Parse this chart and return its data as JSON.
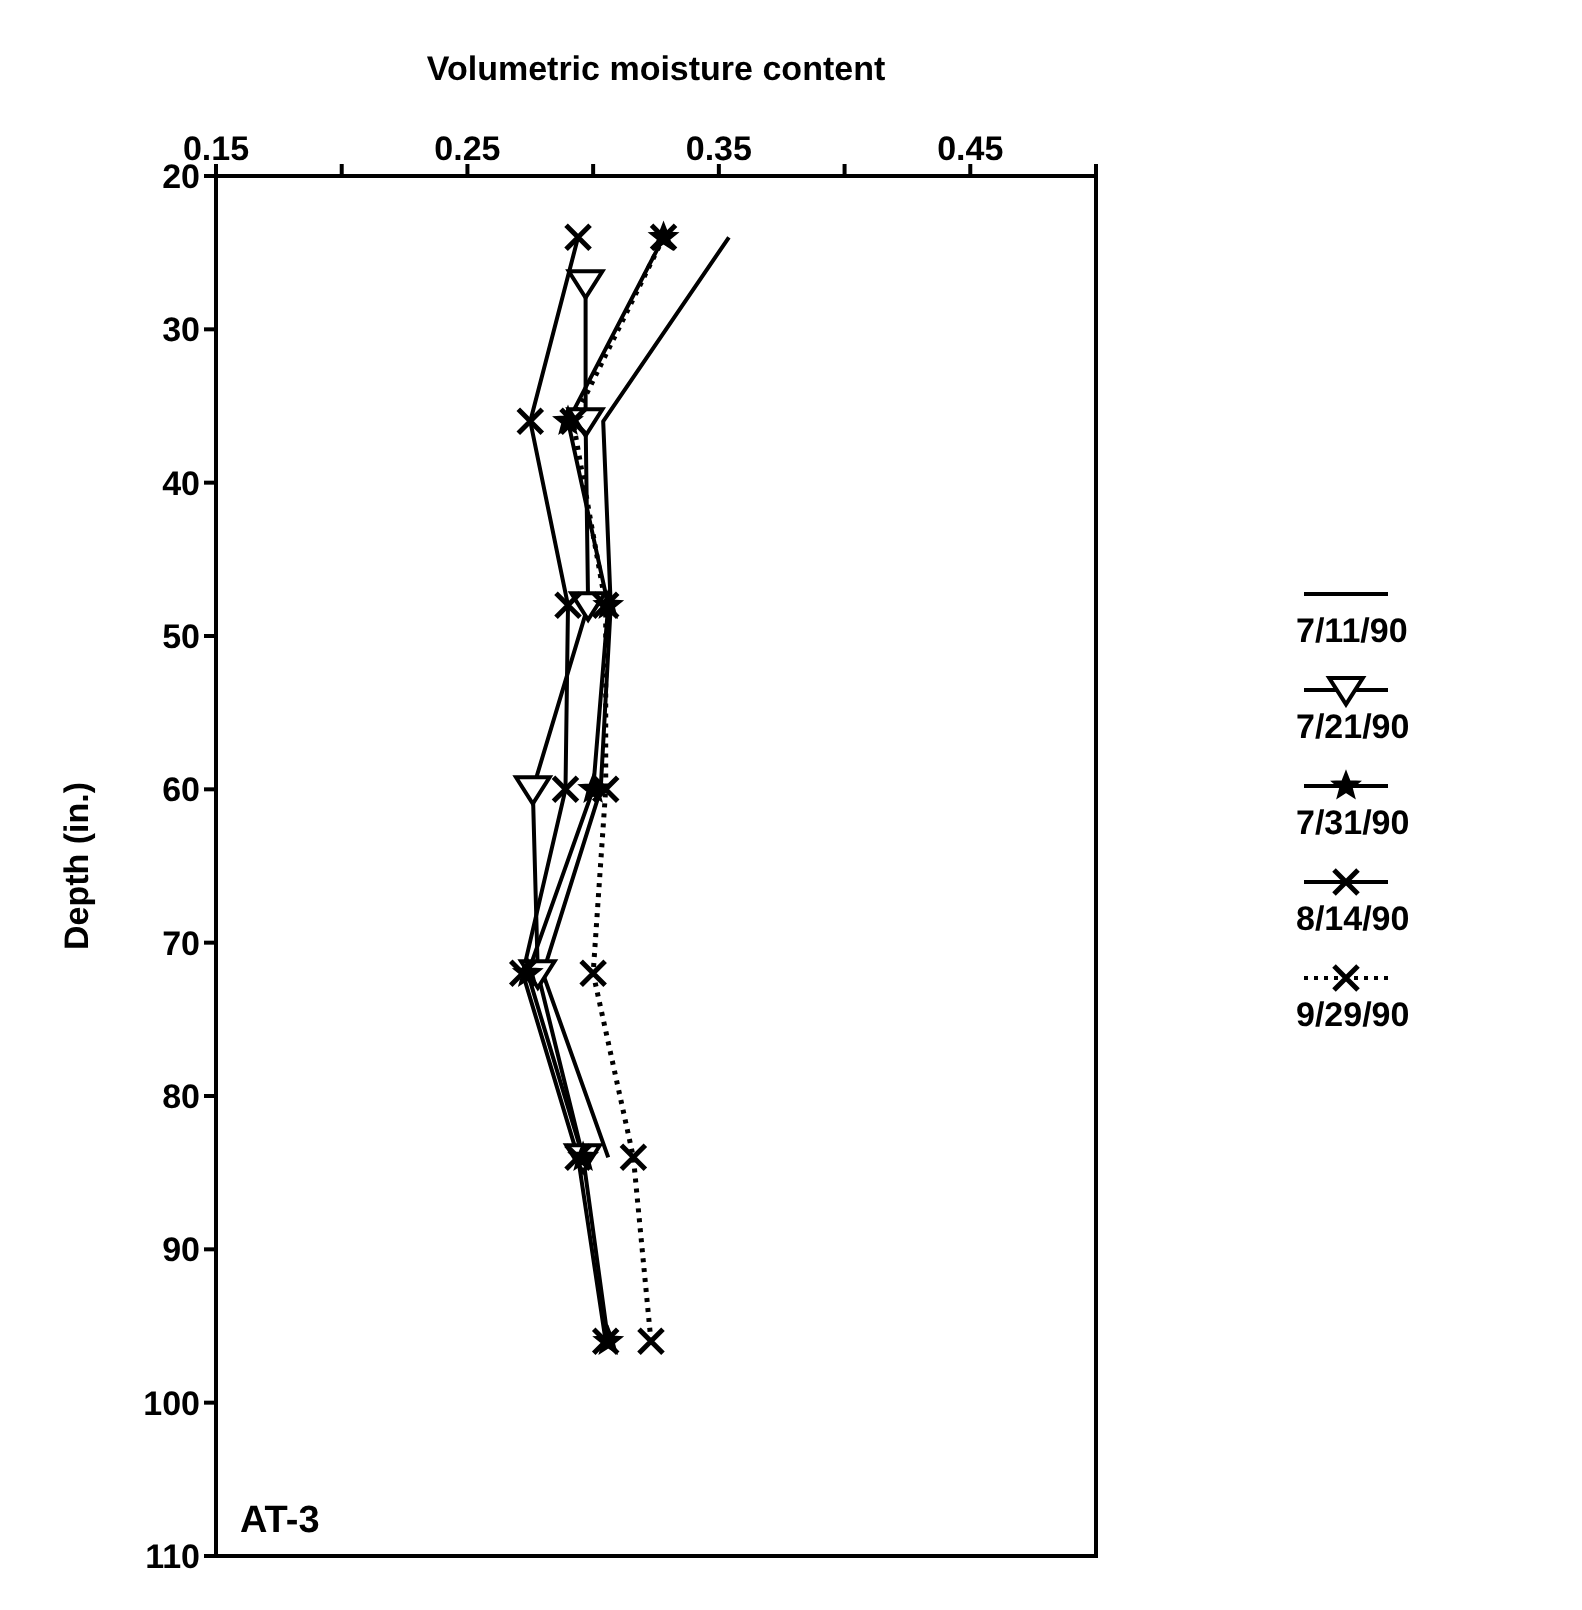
{
  "chart_data": {
    "type": "line",
    "xlabel": "Volumetric moisture content",
    "ylabel": "Depth (in.)",
    "xlim": [
      0.15,
      0.5
    ],
    "xticks": [
      0.15,
      {
        "value": 0.2,
        "label": null
      },
      0.25,
      {
        "value": 0.3,
        "label": null
      },
      0.35,
      {
        "value": 0.4,
        "label": null
      },
      0.45,
      {
        "value": 0.5,
        "label": null
      }
    ],
    "ylim": [
      110,
      20
    ],
    "yticks": [
      20,
      30,
      40,
      50,
      60,
      70,
      80,
      90,
      100,
      110
    ],
    "legend": "right",
    "annotations": [
      "AT-3"
    ],
    "series": [
      {
        "name": "7/11/90",
        "color": "#000000",
        "marker": "none",
        "line_style": "solid",
        "x": [
          0.354,
          0.304,
          0.307,
          0.303,
          0.28,
          0.306
        ],
        "values": [
          24,
          36,
          48,
          60,
          72,
          84
        ]
      },
      {
        "name": "7/21/90",
        "color": "#000000",
        "marker": "triangle",
        "line_style": "solid",
        "x": [
          0.297,
          0.297,
          0.298,
          0.276,
          0.278,
          0.296
        ],
        "values": [
          27,
          36,
          48,
          60,
          72,
          84
        ]
      },
      {
        "name": "7/31/90",
        "color": "#000000",
        "marker": "star",
        "line_style": "solid",
        "x": [
          0.328,
          0.29,
          0.306,
          0.3,
          0.274,
          0.296,
          0.306
        ],
        "values": [
          24,
          36,
          48,
          60,
          72,
          84,
          96
        ]
      },
      {
        "name": "8/14/90",
        "color": "#000000",
        "marker": "cross",
        "line_style": "solid",
        "x": [
          0.294,
          0.275,
          0.29,
          0.289,
          0.272,
          0.294,
          0.305
        ],
        "values": [
          24,
          36,
          48,
          60,
          72,
          84,
          96
        ]
      },
      {
        "name": "9/29/90",
        "color": "#000000",
        "marker": "cross",
        "line_style": "dotted",
        "x": [
          0.328,
          0.292,
          0.305,
          0.305,
          0.3,
          0.316,
          0.323
        ],
        "values": [
          24,
          36,
          48,
          60,
          72,
          84,
          96
        ]
      }
    ]
  }
}
